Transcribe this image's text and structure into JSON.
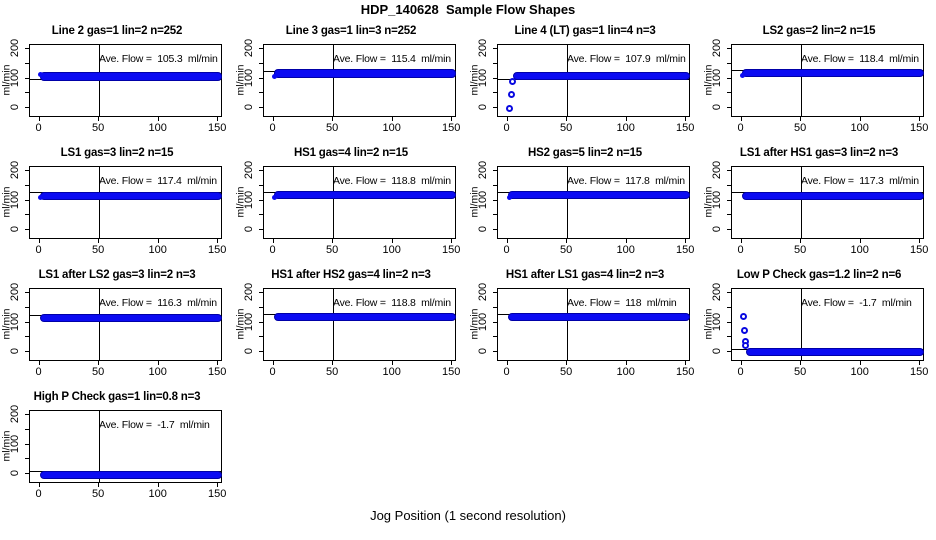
{
  "figure_title": "HDP_140628  Sample Flow Shapes",
  "x_axis_label": "Jog Position (1 second resolution)",
  "y_axis_label": "ml/min",
  "colors": {
    "points": "#0b0bf2",
    "point_edge": "#0000a8",
    "axis": "#000000",
    "background": "#ffffff"
  },
  "axes": {
    "x_ticks": [
      0,
      50,
      100,
      150
    ],
    "y_ticks_labeled": [
      0,
      100,
      200
    ],
    "y_ticks_minor": [
      50,
      150
    ],
    "x_range": [
      -8,
      156
    ],
    "y_range": [
      -34,
      214
    ],
    "vline_x": 50
  },
  "chart_data": [
    {
      "type": "scatter",
      "title": "Line 2 gas=1 lin=2 n=252",
      "n": 252,
      "ave_flow": 105.3,
      "ave_flow_label": "Ave. Flow =  105.3  ml/min",
      "hline_y": 100,
      "band": {
        "x_start": 0,
        "x_end": 153,
        "y_center": 106,
        "y_half": 15
      },
      "outliers": [],
      "blobs": [
        {
          "x": 1,
          "y": 115
        },
        {
          "x": 2.5,
          "y": 112
        }
      ]
    },
    {
      "type": "scatter",
      "title": "Line 3 gas=1 lin=3 n=252",
      "n": 252,
      "ave_flow": 115.4,
      "ave_flow_label": "Ave. Flow =  115.4  ml/min",
      "hline_y": 126,
      "band": {
        "x_start": 0,
        "x_end": 153,
        "y_center": 116,
        "y_half": 15
      },
      "outliers": [],
      "blobs": [
        {
          "x": 1,
          "y": 106
        }
      ]
    },
    {
      "type": "scatter",
      "title": "Line 4 (LT) gas=1 lin=4 n=3",
      "n": 3,
      "ave_flow": 107.9,
      "ave_flow_label": "Ave. Flow =  107.9  ml/min",
      "hline_y": 100,
      "band": {
        "x_start": 5,
        "x_end": 153,
        "y_center": 108,
        "y_half": 13
      },
      "outliers": [
        {
          "x": 2,
          "y": -1
        },
        {
          "x": 3,
          "y": 45
        },
        {
          "x": 4,
          "y": 90
        }
      ],
      "blobs": []
    },
    {
      "type": "scatter",
      "title": "LS2 gas=2 lin=2 n=15",
      "n": 15,
      "ave_flow": 118.4,
      "ave_flow_label": "Ave. Flow =  118.4  ml/min",
      "hline_y": 129,
      "band": {
        "x_start": 0,
        "x_end": 153,
        "y_center": 118,
        "y_half": 13
      },
      "outliers": [],
      "blobs": [
        {
          "x": 1,
          "y": 109
        }
      ]
    },
    {
      "type": "scatter",
      "title": "LS1 gas=3 lin=2 n=15",
      "n": 15,
      "ave_flow": 117.4,
      "ave_flow_label": "Ave. Flow =  117.4  ml/min",
      "hline_y": 128,
      "band": {
        "x_start": 0,
        "x_end": 153,
        "y_center": 117,
        "y_half": 13
      },
      "outliers": [],
      "blobs": [
        {
          "x": 1,
          "y": 110
        }
      ]
    },
    {
      "type": "scatter",
      "title": "HS1 gas=4 lin=2 n=15",
      "n": 15,
      "ave_flow": 118.8,
      "ave_flow_label": "Ave. Flow =  118.8  ml/min",
      "hline_y": 129,
      "band": {
        "x_start": 0,
        "x_end": 153,
        "y_center": 119,
        "y_half": 13
      },
      "outliers": [],
      "blobs": [
        {
          "x": 1,
          "y": 111
        }
      ]
    },
    {
      "type": "scatter",
      "title": "HS2 gas=5 lin=2 n=15",
      "n": 15,
      "ave_flow": 117.8,
      "ave_flow_label": "Ave. Flow =  117.8  ml/min",
      "hline_y": 128,
      "band": {
        "x_start": 0,
        "x_end": 153,
        "y_center": 118,
        "y_half": 13
      },
      "outliers": [],
      "blobs": [
        {
          "x": 2,
          "y": 109
        }
      ]
    },
    {
      "type": "scatter",
      "title": "LS1 after HS1 gas=3 lin=2 n=3",
      "n": 3,
      "ave_flow": 117.3,
      "ave_flow_label": "Ave. Flow =  117.3  ml/min",
      "hline_y": 128,
      "band": {
        "x_start": 0,
        "x_end": 153,
        "y_center": 117,
        "y_half": 13
      },
      "outliers": [],
      "blobs": []
    },
    {
      "type": "scatter",
      "title": "LS1 after LS2 gas=3 lin=2 n=3",
      "n": 3,
      "ave_flow": 116.3,
      "ave_flow_label": "Ave. Flow =  116.3  ml/min",
      "hline_y": 127,
      "band": {
        "x_start": 0,
        "x_end": 153,
        "y_center": 116,
        "y_half": 13
      },
      "outliers": [],
      "blobs": []
    },
    {
      "type": "scatter",
      "title": "HS1 after HS2 gas=4 lin=2 n=3",
      "n": 3,
      "ave_flow": 118.8,
      "ave_flow_label": "Ave. Flow =  118.8  ml/min",
      "hline_y": 129,
      "band": {
        "x_start": 0,
        "x_end": 153,
        "y_center": 119,
        "y_half": 13
      },
      "outliers": [],
      "blobs": []
    },
    {
      "type": "scatter",
      "title": "HS1 after LS1 gas=4 lin=2 n=3",
      "n": 3,
      "ave_flow": 118,
      "ave_flow_label": "Ave. Flow =  118  ml/min",
      "hline_y": 129,
      "band": {
        "x_start": 0,
        "x_end": 153,
        "y_center": 118,
        "y_half": 13
      },
      "outliers": [],
      "blobs": []
    },
    {
      "type": "scatter",
      "title": "Low P Check gas=1.2 lin=2 n=6",
      "n": 6,
      "ave_flow": -1.7,
      "ave_flow_label": "Ave. Flow =  -1.7  ml/min",
      "hline_y": 10,
      "band": {
        "x_start": 4,
        "x_end": 153,
        "y_center": -1,
        "y_half": 14
      },
      "outliers": [
        {
          "x": 2,
          "y": 120
        },
        {
          "x": 2.5,
          "y": 74
        },
        {
          "x": 3,
          "y": 34
        },
        {
          "x": 3.5,
          "y": 22
        }
      ],
      "blobs": []
    },
    {
      "type": "scatter",
      "title": "High P Check gas=1 lin=0.8 n=3",
      "n": 3,
      "ave_flow": -1.7,
      "ave_flow_label": "Ave. Flow =  -1.7  ml/min",
      "hline_y": 10,
      "band": {
        "x_start": 0,
        "x_end": 153,
        "y_center": -3,
        "y_half": 14
      },
      "outliers": [],
      "blobs": []
    }
  ]
}
